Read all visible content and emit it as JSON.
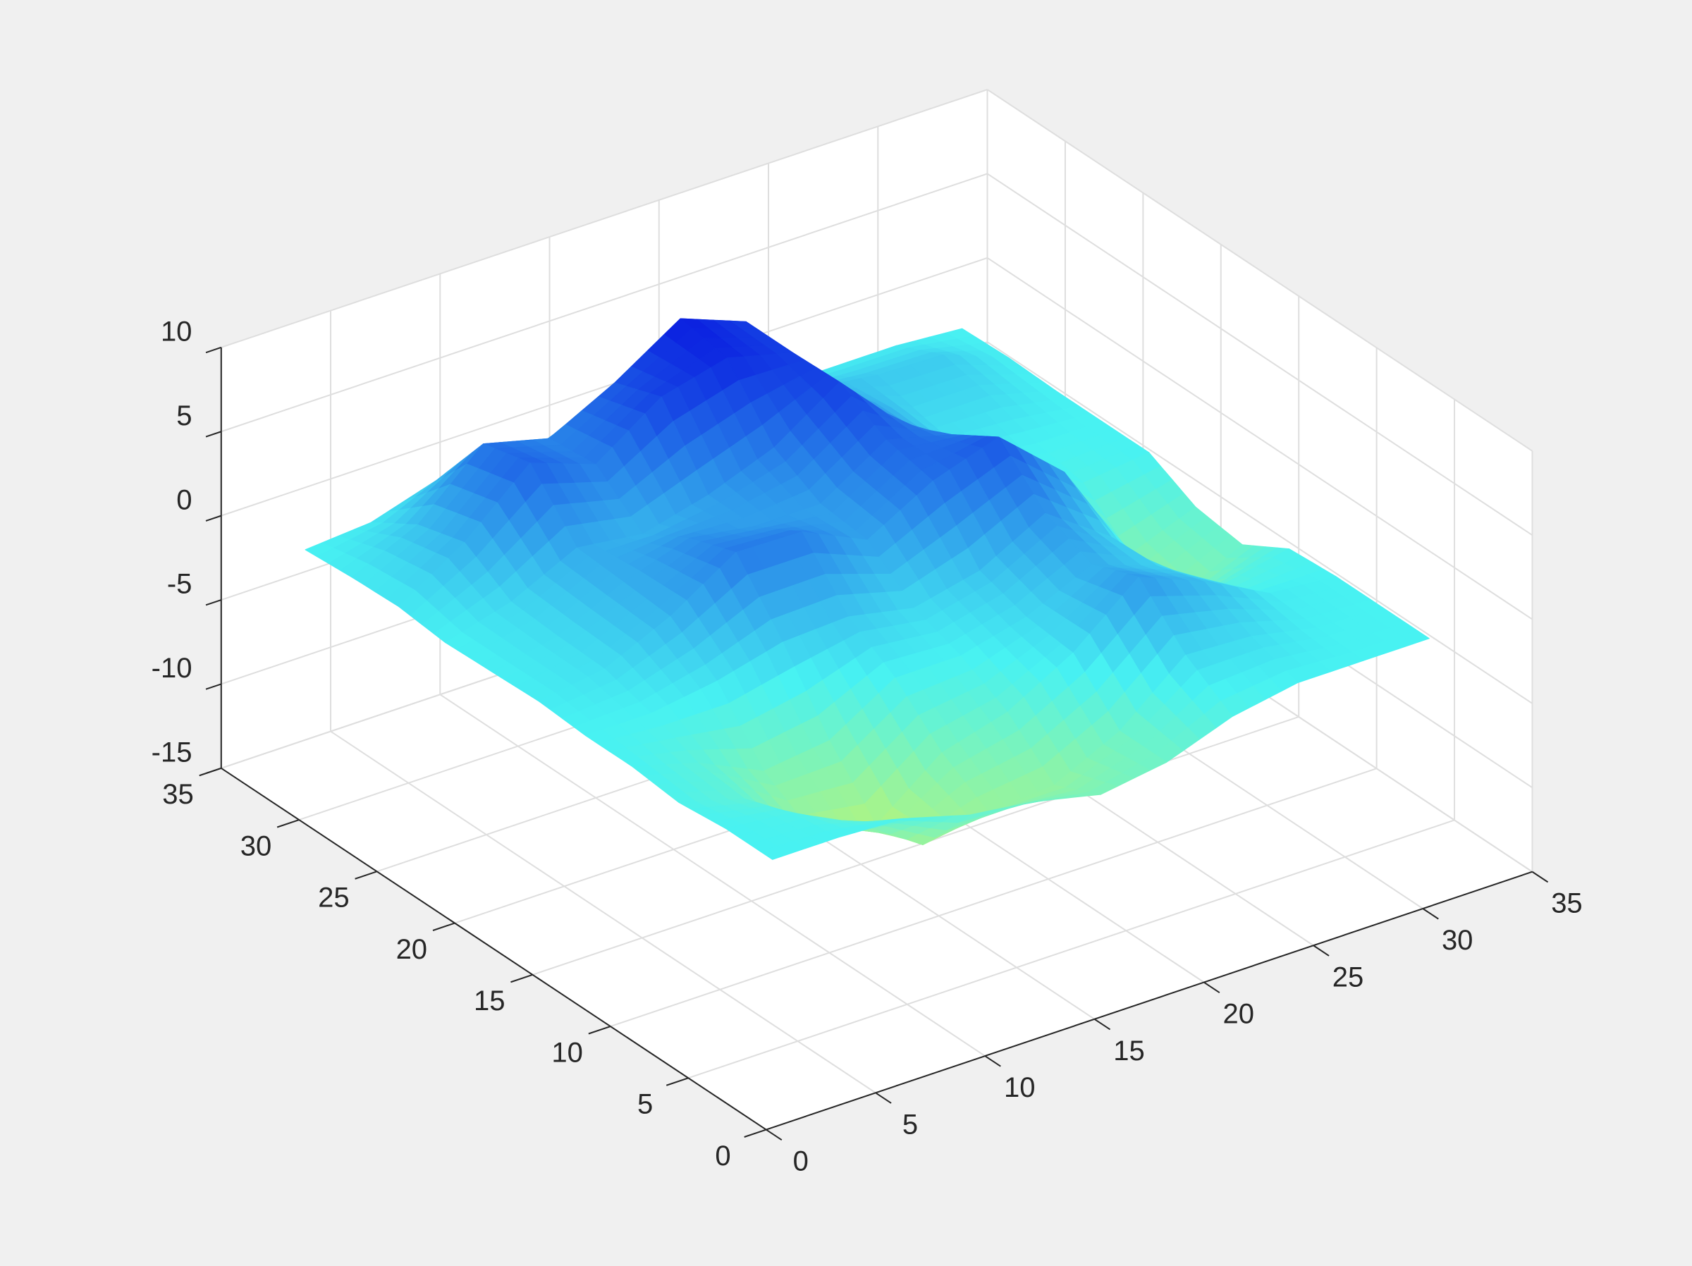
{
  "chart_data": {
    "type": "surface",
    "x": [
      1,
      4,
      7,
      10,
      13,
      16,
      19,
      22,
      25,
      28,
      31
    ],
    "y": [
      1,
      4,
      7,
      10,
      13,
      16,
      19,
      22,
      25,
      28,
      31
    ],
    "z": [
      [
        0,
        0,
        -0.2,
        -1.3,
        -1.8,
        -2.7,
        -2.1,
        -0.7,
        0,
        0,
        0
      ],
      [
        0,
        -0.4,
        -2.3,
        -4.9,
        -4.3,
        -4.0,
        -2.1,
        1.1,
        0.9,
        0.1,
        0
      ],
      [
        -0.3,
        -1.4,
        -4.6,
        -5.6,
        -2.6,
        -1.5,
        0.7,
        3.9,
        2.3,
        0.3,
        0
      ],
      [
        0,
        -1.1,
        -2.9,
        -2.4,
        0,
        0,
        1.0,
        2.8,
        1.4,
        -1.0,
        -0.2
      ],
      [
        0,
        0,
        0.6,
        1.6,
        1.8,
        1.0,
        1.9,
        4.0,
        1.3,
        -3.7,
        -1.8
      ],
      [
        0.2,
        0.8,
        2.6,
        5.1,
        5.0,
        3.2,
        5.4,
        6.7,
        3.3,
        -2.9,
        -1.4
      ],
      [
        0.1,
        0.9,
        2.8,
        4.1,
        3.5,
        3.5,
        6.0,
        5.0,
        2.0,
        -0.5,
        0
      ],
      [
        0,
        1.1,
        3.0,
        2.5,
        3.5,
        5.0,
        7.6,
        3.7,
        0.5,
        0,
        0
      ],
      [
        0.3,
        2.8,
        6.2,
        4.8,
        7.5,
        8.5,
        7.5,
        3.5,
        1.0,
        1.0,
        0
      ],
      [
        0.2,
        2.0,
        5.5,
        4.5,
        6.5,
        9.0,
        7.5,
        2.2,
        1.7,
        1.6,
        0.1
      ],
      [
        0,
        0.3,
        1.5,
        0.8,
        1.0,
        2.0,
        1.5,
        0.3,
        0.3,
        0.3,
        0
      ]
    ],
    "xlim": [
      0,
      35
    ],
    "ylim": [
      0,
      35
    ],
    "zlim": [
      -15,
      10
    ],
    "xticks": [
      0,
      5,
      10,
      15,
      20,
      25,
      30,
      35
    ],
    "yticks": [
      0,
      5,
      10,
      15,
      20,
      25,
      30,
      35
    ],
    "zticks": [
      -15,
      -10,
      -5,
      0,
      5,
      10
    ],
    "grid": true,
    "colormap": [
      "#f0f53c",
      "#48f2f2",
      "#0a1ce0"
    ],
    "clim": [
      -9,
      9
    ]
  }
}
